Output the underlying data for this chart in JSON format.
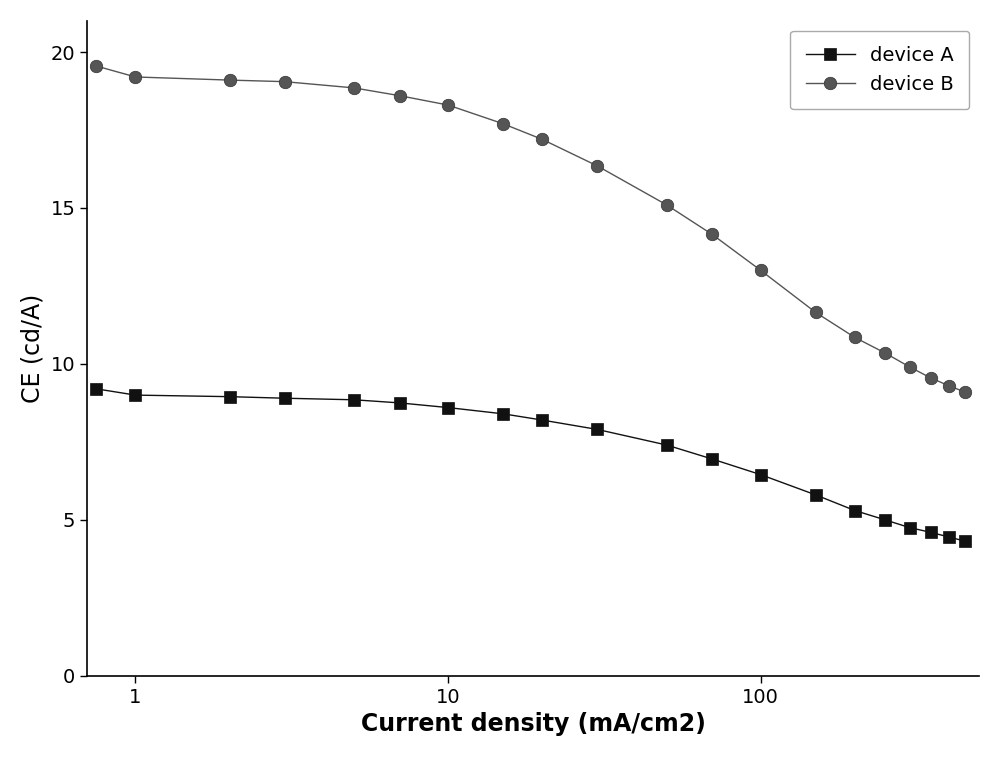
{
  "title": "",
  "xlabel": "Current density (mA/cm2)",
  "ylabel": "CE (cd/A)",
  "xlim": [
    0.7,
    500
  ],
  "ylim": [
    0,
    21
  ],
  "yticks": [
    0,
    5,
    10,
    15,
    20
  ],
  "background_color": "#ffffff",
  "device_A": {
    "label": "device A",
    "color": "#111111",
    "marker": "s",
    "markersize": 8,
    "linewidth": 1.0,
    "x": [
      0.75,
      1.0,
      2.0,
      3.0,
      5.0,
      7.0,
      10.0,
      15.0,
      20.0,
      30.0,
      50.0,
      70.0,
      100.0,
      150.0,
      200.0,
      250.0,
      300.0,
      350.0,
      400.0,
      450.0
    ],
    "y": [
      9.2,
      9.0,
      8.95,
      8.9,
      8.85,
      8.75,
      8.6,
      8.4,
      8.2,
      7.9,
      7.4,
      6.95,
      6.45,
      5.8,
      5.3,
      5.0,
      4.75,
      4.6,
      4.45,
      4.32
    ]
  },
  "device_B": {
    "label": "device B",
    "color": "#555555",
    "marker": "o",
    "markersize": 9,
    "linewidth": 1.0,
    "x": [
      0.75,
      1.0,
      2.0,
      3.0,
      5.0,
      7.0,
      10.0,
      15.0,
      20.0,
      30.0,
      50.0,
      70.0,
      100.0,
      150.0,
      200.0,
      250.0,
      300.0,
      350.0,
      400.0,
      450.0
    ],
    "y": [
      19.55,
      19.2,
      19.1,
      19.05,
      18.85,
      18.6,
      18.3,
      17.7,
      17.2,
      16.35,
      15.1,
      14.15,
      13.0,
      11.65,
      10.85,
      10.35,
      9.9,
      9.55,
      9.3,
      9.1
    ]
  },
  "legend_fontsize": 14,
  "axis_label_fontsize": 17,
  "tick_fontsize": 14
}
